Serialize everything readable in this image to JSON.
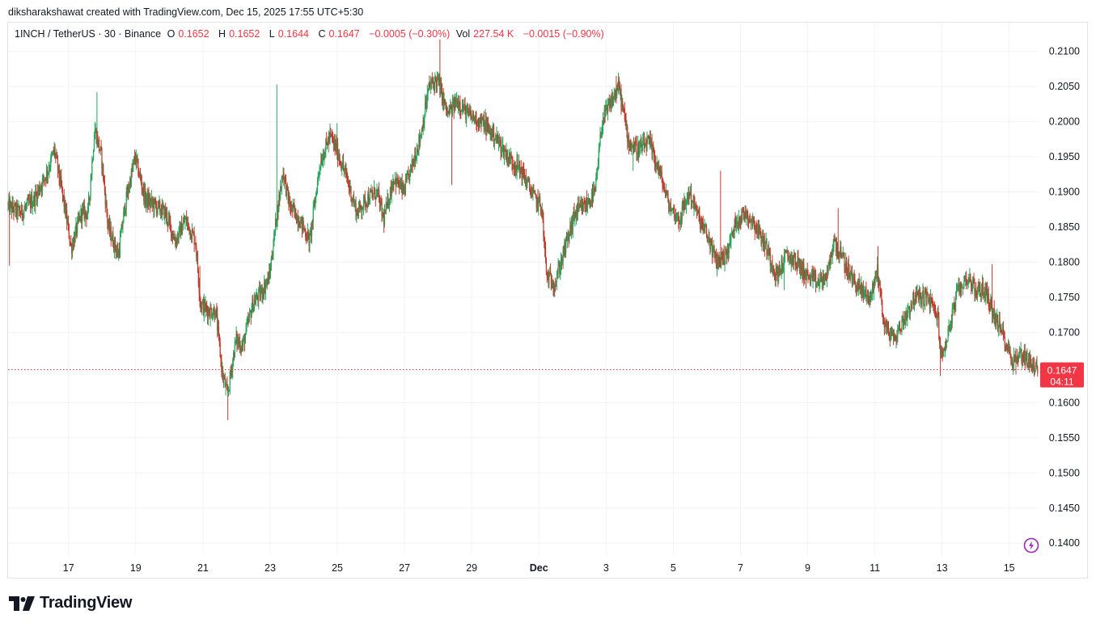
{
  "header": {
    "text": "diksharakshawat created with TradingView.com, Dec 15, 2025 17:55 UTC+5:30"
  },
  "legend": {
    "symbol": "1INCH / TetherUS · 30 · Binance",
    "o_label": "O",
    "o_value": "0.1652",
    "h_label": "H",
    "h_value": "0.1652",
    "l_label": "L",
    "l_value": "0.1644",
    "c_label": "C",
    "c_value": "0.1647",
    "change": "−0.0005 (−0.30%)",
    "vol_label": "Vol",
    "vol_value": "227.54 K",
    "vol_change": "−0.0015 (−0.90%)"
  },
  "price_tag": {
    "price": "0.1647",
    "countdown": "04:11"
  },
  "logo": {
    "text": "TradingView"
  },
  "icons": {
    "logo": "tradingview-logo-icon",
    "bolt": "lightning-icon"
  },
  "colors": {
    "up": "#26a65b",
    "down": "#c0392b",
    "last_price": "#f23645",
    "grid": "#f0f3fa",
    "text": "#131722"
  },
  "chart_data": {
    "type": "candlestick",
    "title": "1INCH / TetherUS · 30 · Binance",
    "x_ticks": [
      "17",
      "19",
      "21",
      "23",
      "25",
      "27",
      "29",
      "Dec",
      "3",
      "5",
      "7",
      "9",
      "11",
      "13",
      "15"
    ],
    "x_tick_days": [
      17,
      19,
      21,
      23,
      25,
      27,
      29,
      31,
      33,
      35,
      37,
      39,
      41,
      43,
      45
    ],
    "x_range_days": [
      15.2,
      45.85
    ],
    "y_ticks": [
      "0.2100",
      "0.2050",
      "0.2000",
      "0.1950",
      "0.1900",
      "0.1850",
      "0.1800",
      "0.1750",
      "0.1700",
      "0.1600",
      "0.1550",
      "0.1500",
      "0.1450",
      "0.1400"
    ],
    "ylim": [
      0.1383,
      0.2141
    ],
    "last_price": 0.1647,
    "price_path": [
      [
        15.2,
        0.188
      ],
      [
        15.6,
        0.187
      ],
      [
        16.0,
        0.189
      ],
      [
        16.4,
        0.193
      ],
      [
        16.6,
        0.196
      ],
      [
        16.9,
        0.188
      ],
      [
        17.1,
        0.182
      ],
      [
        17.4,
        0.187
      ],
      [
        17.6,
        0.187
      ],
      [
        17.8,
        0.199
      ],
      [
        18.0,
        0.195
      ],
      [
        18.2,
        0.185
      ],
      [
        18.5,
        0.181
      ],
      [
        18.7,
        0.188
      ],
      [
        19.0,
        0.195
      ],
      [
        19.3,
        0.189
      ],
      [
        19.6,
        0.188
      ],
      [
        19.9,
        0.187
      ],
      [
        20.2,
        0.183
      ],
      [
        20.5,
        0.186
      ],
      [
        20.8,
        0.183
      ],
      [
        20.95,
        0.174
      ],
      [
        21.2,
        0.173
      ],
      [
        21.4,
        0.173
      ],
      [
        21.6,
        0.164
      ],
      [
        21.75,
        0.161
      ],
      [
        22.0,
        0.169
      ],
      [
        22.2,
        0.168
      ],
      [
        22.5,
        0.174
      ],
      [
        22.8,
        0.176
      ],
      [
        23.0,
        0.178
      ],
      [
        23.2,
        0.186
      ],
      [
        23.4,
        0.193
      ],
      [
        23.6,
        0.188
      ],
      [
        23.9,
        0.186
      ],
      [
        24.2,
        0.183
      ],
      [
        24.5,
        0.194
      ],
      [
        24.8,
        0.198
      ],
      [
        25.0,
        0.196
      ],
      [
        25.3,
        0.192
      ],
      [
        25.6,
        0.187
      ],
      [
        25.9,
        0.189
      ],
      [
        26.2,
        0.19
      ],
      [
        26.4,
        0.186
      ],
      [
        26.7,
        0.192
      ],
      [
        27.0,
        0.19
      ],
      [
        27.2,
        0.193
      ],
      [
        27.5,
        0.198
      ],
      [
        27.75,
        0.205
      ],
      [
        28.0,
        0.206
      ],
      [
        28.3,
        0.201
      ],
      [
        28.6,
        0.203
      ],
      [
        28.9,
        0.201
      ],
      [
        29.3,
        0.2
      ],
      [
        29.7,
        0.198
      ],
      [
        30.1,
        0.195
      ],
      [
        30.5,
        0.193
      ],
      [
        30.9,
        0.189
      ],
      [
        31.1,
        0.188
      ],
      [
        31.25,
        0.178
      ],
      [
        31.5,
        0.177
      ],
      [
        31.8,
        0.182
      ],
      [
        32.1,
        0.187
      ],
      [
        32.4,
        0.188
      ],
      [
        32.7,
        0.19
      ],
      [
        32.9,
        0.2
      ],
      [
        33.2,
        0.203
      ],
      [
        33.4,
        0.205
      ],
      [
        33.7,
        0.197
      ],
      [
        34.0,
        0.196
      ],
      [
        34.3,
        0.197
      ],
      [
        34.6,
        0.193
      ],
      [
        34.9,
        0.188
      ],
      [
        35.2,
        0.186
      ],
      [
        35.5,
        0.19
      ],
      [
        35.8,
        0.186
      ],
      [
        36.1,
        0.183
      ],
      [
        36.3,
        0.18
      ],
      [
        36.6,
        0.181
      ],
      [
        36.9,
        0.186
      ],
      [
        37.2,
        0.187
      ],
      [
        37.5,
        0.185
      ],
      [
        37.8,
        0.182
      ],
      [
        38.1,
        0.178
      ],
      [
        38.4,
        0.181
      ],
      [
        38.7,
        0.18
      ],
      [
        39.0,
        0.178
      ],
      [
        39.3,
        0.177
      ],
      [
        39.6,
        0.178
      ],
      [
        39.8,
        0.183
      ],
      [
        40.0,
        0.181
      ],
      [
        40.3,
        0.178
      ],
      [
        40.6,
        0.176
      ],
      [
        40.9,
        0.175
      ],
      [
        41.1,
        0.179
      ],
      [
        41.3,
        0.171
      ],
      [
        41.6,
        0.169
      ],
      [
        41.9,
        0.172
      ],
      [
        42.2,
        0.175
      ],
      [
        42.6,
        0.175
      ],
      [
        42.9,
        0.172
      ],
      [
        43.0,
        0.166
      ],
      [
        43.2,
        0.17
      ],
      [
        43.5,
        0.176
      ],
      [
        43.8,
        0.178
      ],
      [
        44.0,
        0.176
      ],
      [
        44.3,
        0.176
      ],
      [
        44.6,
        0.172
      ],
      [
        44.9,
        0.169
      ],
      [
        45.1,
        0.166
      ],
      [
        45.4,
        0.167
      ],
      [
        45.6,
        0.166
      ],
      [
        45.85,
        0.1647
      ]
    ],
    "wicks": [
      [
        15.25,
        0.1795
      ],
      [
        17.85,
        0.2042
      ],
      [
        20.9,
        0.1795
      ],
      [
        21.75,
        0.1575
      ],
      [
        23.2,
        0.2053
      ],
      [
        25.0,
        0.1998
      ],
      [
        28.05,
        0.2117
      ],
      [
        28.4,
        0.191
      ],
      [
        29.4,
        0.2018
      ],
      [
        31.3,
        0.1762
      ],
      [
        33.3,
        0.2065
      ],
      [
        33.8,
        0.193
      ],
      [
        36.4,
        0.193
      ],
      [
        38.3,
        0.176
      ],
      [
        39.9,
        0.1877
      ],
      [
        41.1,
        0.1823
      ],
      [
        42.95,
        0.1638
      ],
      [
        44.5,
        0.1797
      ],
      [
        45.2,
        0.164
      ]
    ]
  }
}
